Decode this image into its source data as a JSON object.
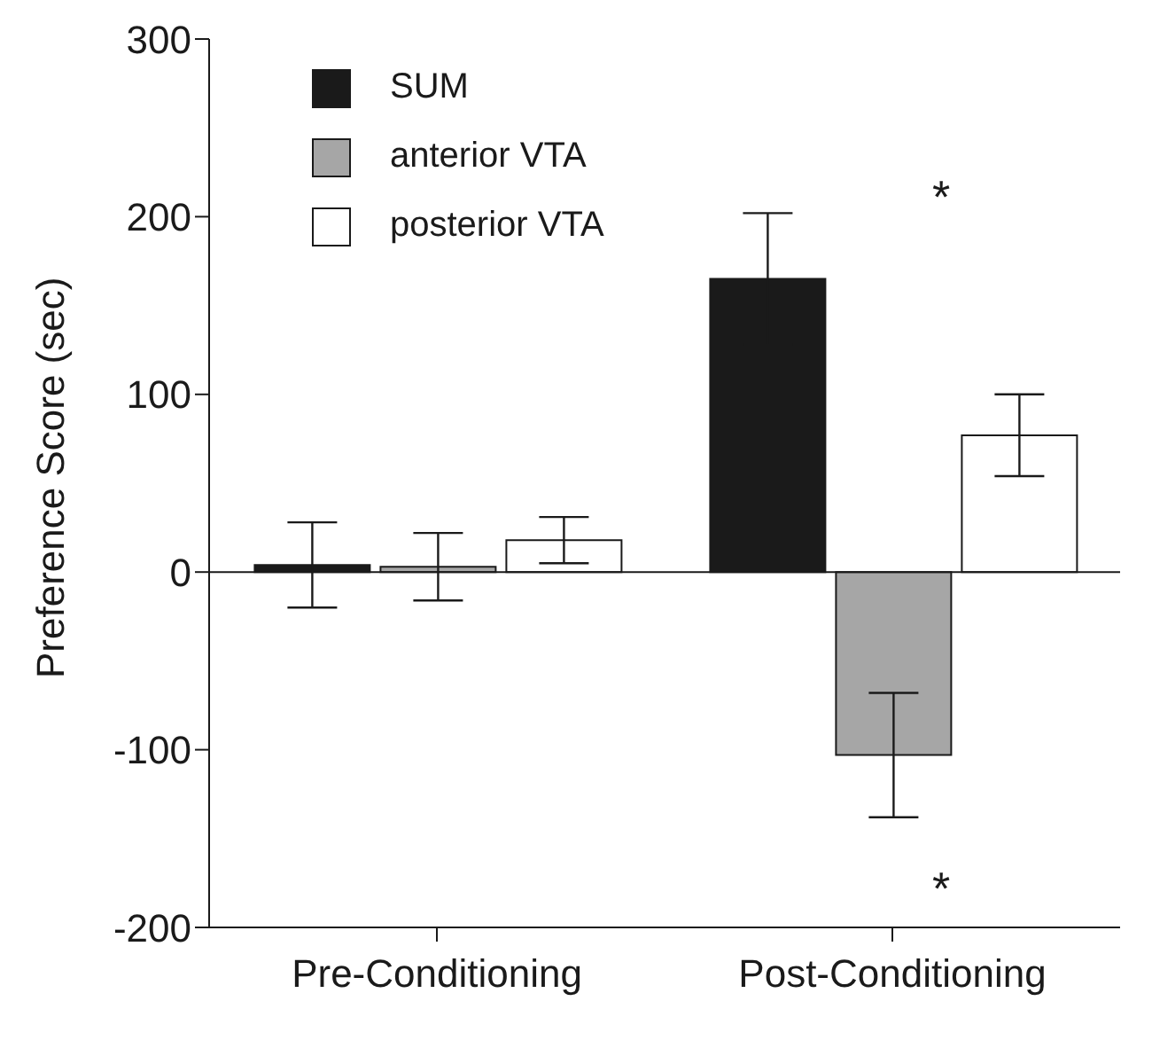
{
  "chart_data": {
    "type": "bar",
    "ylabel": "Preference Score (sec)",
    "categories": [
      "Pre-Conditioning",
      "Post-Conditioning"
    ],
    "series": [
      {
        "name": "SUM",
        "color": "#1a1a1a",
        "values": [
          4,
          165
        ],
        "errors": [
          24,
          37
        ]
      },
      {
        "name": "anterior VTA",
        "color": "#a6a6a6",
        "values": [
          3,
          -103
        ],
        "errors": [
          19,
          35
        ]
      },
      {
        "name": "posterior VTA",
        "color": "#ffffff",
        "values": [
          18,
          77
        ],
        "errors": [
          13,
          23
        ]
      }
    ],
    "ylim": [
      -200,
      300
    ],
    "yticks": [
      -200,
      -100,
      0,
      100,
      200,
      300
    ],
    "grid": false,
    "legend": "top left",
    "ref_lines": [
      {
        "axis": "y",
        "value": 0,
        "color": "#1a1a1a"
      }
    ],
    "annotations": [
      "*",
      "*"
    ]
  }
}
